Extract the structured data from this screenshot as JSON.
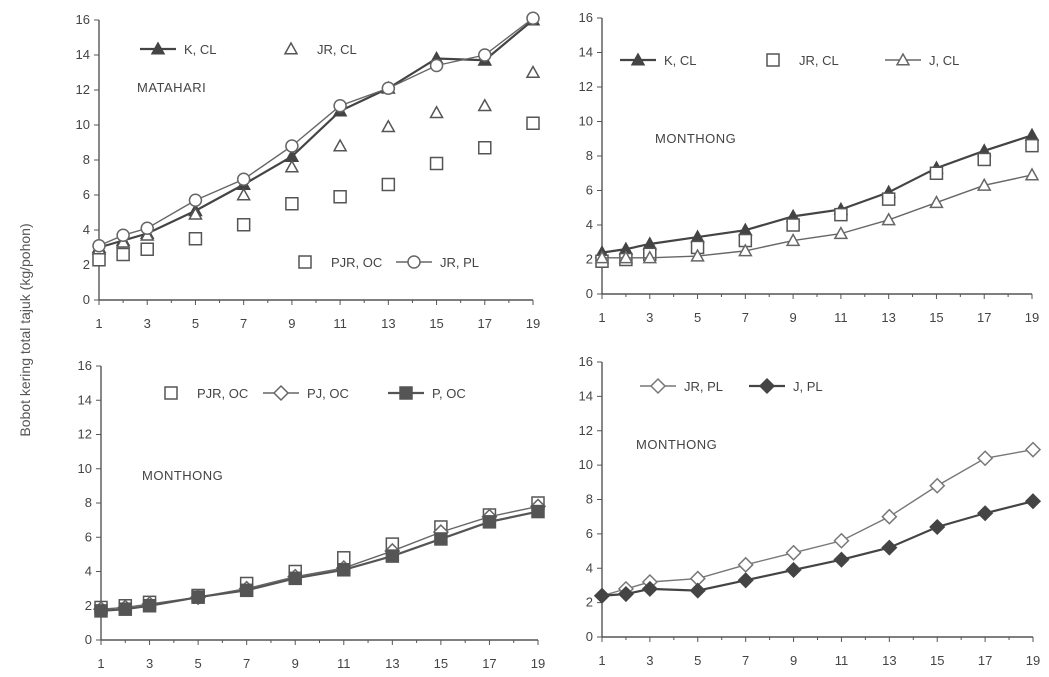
{
  "ylabel": "Bobot kering total tajuk (kg/pohon)",
  "chart_data": [
    {
      "type": "line",
      "annotation": "MATAHARI",
      "ylim": [
        0,
        16
      ],
      "yticks": [
        0,
        2,
        4,
        6,
        8,
        10,
        12,
        14,
        16
      ],
      "xticks": [
        1,
        3,
        5,
        7,
        9,
        11,
        13,
        15,
        17,
        19
      ],
      "x": [
        1,
        2,
        3,
        5,
        7,
        9,
        11,
        13,
        15,
        17,
        19
      ],
      "series": [
        {
          "name": "K, CL",
          "marker": "triangle-filled",
          "line": true,
          "color": "#444444",
          "values": [
            3.0,
            3.4,
            3.8,
            5.1,
            6.6,
            8.2,
            10.8,
            12.1,
            13.8,
            13.7,
            16.0
          ]
        },
        {
          "name": "JR, CL",
          "marker": "triangle-open",
          "line": false,
          "color": "#555555",
          "values": [
            2.9,
            3.3,
            3.7,
            4.9,
            6.0,
            7.6,
            8.8,
            9.9,
            10.7,
            11.1,
            13.0
          ]
        },
        {
          "name": "PJR, OC",
          "marker": "square-open",
          "line": false,
          "color": "#555555",
          "values": [
            2.3,
            2.6,
            2.9,
            3.5,
            4.3,
            5.5,
            5.9,
            6.6,
            7.8,
            8.7,
            10.1
          ]
        },
        {
          "name": "JR, PL",
          "marker": "circle-open",
          "line": true,
          "color": "#666666",
          "values": [
            3.1,
            3.7,
            4.1,
            5.7,
            6.9,
            8.8,
            11.1,
            12.1,
            13.4,
            14.0,
            16.1
          ]
        }
      ],
      "legend_upper": [
        "K, CL",
        "JR, CL"
      ],
      "legend_lower": [
        "PJR, OC",
        "JR, PL"
      ]
    },
    {
      "type": "line",
      "annotation": "MONTHONG",
      "ylim": [
        0,
        16
      ],
      "yticks": [
        0,
        2,
        4,
        6,
        8,
        10,
        12,
        14,
        16
      ],
      "xticks": [
        1,
        3,
        5,
        7,
        9,
        11,
        13,
        15,
        17,
        19
      ],
      "x": [
        1,
        2,
        3,
        5,
        7,
        9,
        11,
        13,
        15,
        17,
        19
      ],
      "series": [
        {
          "name": "K, CL",
          "marker": "triangle-filled",
          "line": true,
          "color": "#444444",
          "values": [
            2.4,
            2.6,
            2.9,
            3.3,
            3.7,
            4.5,
            4.9,
            5.9,
            7.3,
            8.3,
            9.2
          ]
        },
        {
          "name": "JR, CL",
          "marker": "square-open",
          "line": false,
          "color": "#555555",
          "values": [
            1.9,
            2.0,
            2.3,
            2.7,
            3.1,
            4.0,
            4.6,
            5.5,
            7.0,
            7.8,
            8.6
          ]
        },
        {
          "name": "J, CL",
          "marker": "triangle-open",
          "line": true,
          "color": "#666666",
          "values": [
            2.1,
            2.1,
            2.1,
            2.2,
            2.5,
            3.1,
            3.5,
            4.3,
            5.3,
            6.3,
            6.9
          ]
        }
      ],
      "legend_upper": [
        "K, CL",
        "JR, CL",
        "J, CL"
      ]
    },
    {
      "type": "line",
      "annotation": "MONTHONG",
      "ylim": [
        0,
        16
      ],
      "yticks": [
        0,
        2,
        4,
        6,
        8,
        10,
        12,
        14,
        16
      ],
      "xticks": [
        1,
        3,
        5,
        7,
        9,
        11,
        13,
        15,
        17,
        19
      ],
      "x": [
        1,
        2,
        3,
        5,
        7,
        9,
        11,
        13,
        15,
        17,
        19
      ],
      "series": [
        {
          "name": "PJR, OC",
          "marker": "square-open",
          "line": false,
          "color": "#555555",
          "values": [
            1.9,
            2.0,
            2.2,
            2.6,
            3.3,
            4.0,
            4.8,
            5.6,
            6.6,
            7.3,
            8.0
          ]
        },
        {
          "name": "PJ, OC",
          "marker": "diamond-open",
          "line": true,
          "color": "#666666",
          "values": [
            1.8,
            1.9,
            2.1,
            2.5,
            3.0,
            3.7,
            4.2,
            5.2,
            6.3,
            7.2,
            7.8
          ]
        },
        {
          "name": "P, OC",
          "marker": "square-filled",
          "line": true,
          "color": "#555555",
          "values": [
            1.7,
            1.8,
            2.0,
            2.5,
            2.9,
            3.6,
            4.1,
            4.9,
            5.9,
            6.9,
            7.5
          ]
        }
      ],
      "legend_upper": [
        "PJR, OC",
        "PJ, OC",
        "P, OC"
      ]
    },
    {
      "type": "line",
      "annotation": "MONTHONG",
      "ylim": [
        0,
        16
      ],
      "yticks": [
        0,
        2,
        4,
        6,
        8,
        10,
        12,
        14,
        16
      ],
      "xticks": [
        1,
        3,
        5,
        7,
        9,
        11,
        13,
        15,
        17,
        19
      ],
      "x": [
        1,
        2,
        3,
        5,
        7,
        9,
        11,
        13,
        15,
        17,
        19
      ],
      "series": [
        {
          "name": "JR, PL",
          "marker": "diamond-open",
          "line": true,
          "color": "#777777",
          "values": [
            2.4,
            2.8,
            3.2,
            3.4,
            4.2,
            4.9,
            5.6,
            7.0,
            8.8,
            10.4,
            10.9
          ]
        },
        {
          "name": "J, PL",
          "marker": "diamond-filled",
          "line": true,
          "color": "#444444",
          "values": [
            2.4,
            2.5,
            2.8,
            2.7,
            3.3,
            3.9,
            4.5,
            5.2,
            6.4,
            7.2,
            7.9
          ]
        }
      ],
      "legend_upper": [
        "JR, PL",
        "J, PL"
      ]
    }
  ]
}
